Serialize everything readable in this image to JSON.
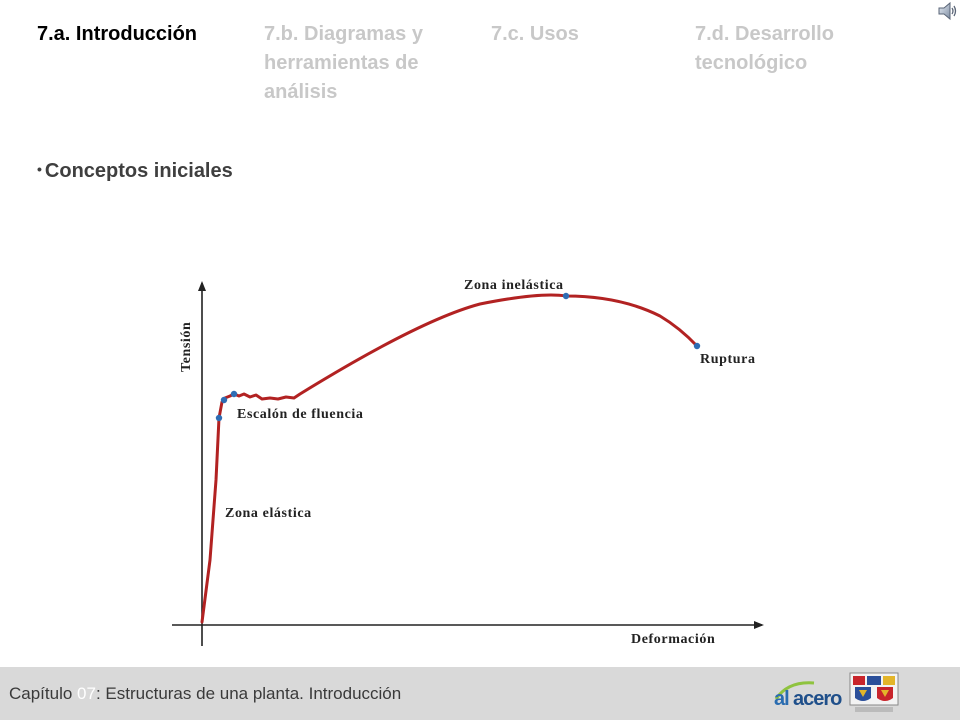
{
  "tabs": [
    {
      "label": "7.a. Introducción",
      "active": true
    },
    {
      "label": "7.b. Diagramas y herramientas de análisis",
      "active": false
    },
    {
      "label": "7.c. Usos",
      "active": false
    },
    {
      "label": "7.d. Desarrollo tecnológico",
      "active": false
    }
  ],
  "section": {
    "bullet": "•",
    "title": "Conceptos iniciales"
  },
  "diagram": {
    "y_axis_label": "Tensión",
    "x_axis_label": "Deformación",
    "labels": {
      "elastic": "Zona elástica",
      "yield": "Escalón de fluencia",
      "inelastic": "Zona inelástica",
      "rupture": "Ruptura"
    },
    "curve_color": "#b22222",
    "point_color": "#2e6db4"
  },
  "footer": {
    "prefix": "Capítulo ",
    "chapter": "07",
    "suffix": ": Estructuras de una planta. Introducción",
    "logo_text_1": "al",
    "logo_text_2": "acero"
  },
  "icons": {
    "audio": "speaker-icon"
  }
}
